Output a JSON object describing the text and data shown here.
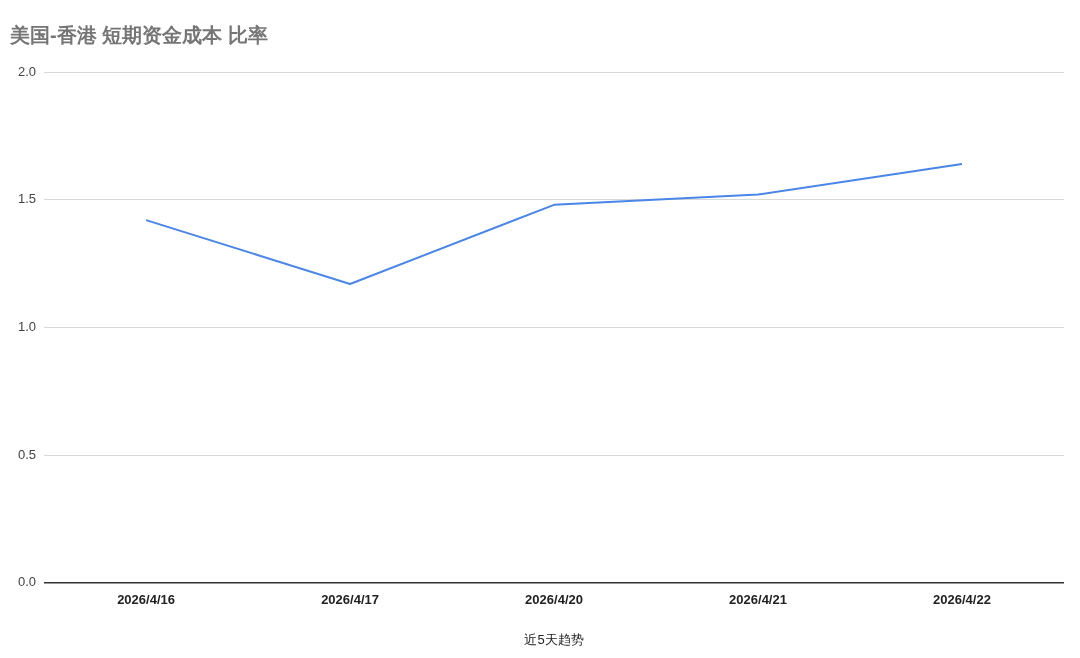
{
  "chart_data": {
    "type": "line",
    "title": "美国-香港 短期资金成本 比率",
    "xlabel": "近5天趋势",
    "categories": [
      "2026/4/16",
      "2026/4/17",
      "2026/4/20",
      "2026/4/21",
      "2026/4/22"
    ],
    "series": [
      {
        "color": "#4a86e8",
        "values": [
          1.42,
          1.17,
          1.48,
          1.52,
          1.64
        ]
      }
    ],
    "ylim": [
      0,
      2
    ],
    "yticks": [
      {
        "value": 0,
        "label": "0.0"
      },
      {
        "value": 0.5,
        "label": "0.5"
      },
      {
        "value": 1,
        "label": "1.0"
      },
      {
        "value": 1.5,
        "label": "1.5"
      },
      {
        "value": 2,
        "label": "2.0"
      }
    ],
    "grid": "y",
    "legend": false,
    "marker": "none",
    "line_style": "solid"
  }
}
